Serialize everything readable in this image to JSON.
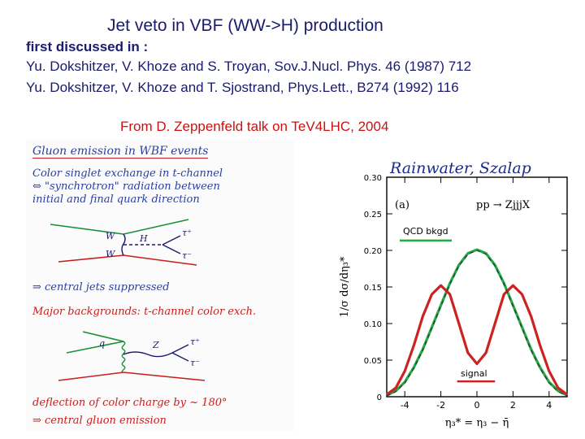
{
  "title": "Jet veto in VBF (WW->H) production",
  "refs": {
    "intro": "first discussed in :",
    "ref1": "Yu. Dokshitzer, V. Khoze and S. Troyan, Sov.J.Nucl. Phys. 46 (1987) 712",
    "ref2": "Yu. Dokshitzer, V. Khoze and T. Sjostrand, Phys.Lett., B274 (1992) 116"
  },
  "credit": "From D. Zeppenfeld talk on TeV4LHC, 2004",
  "notes": {
    "heading": "Gluon emission in WBF events",
    "line1": "Color singlet exchange in t-channel",
    "line2": "⇔ \"synchrotron\" radiation between",
    "line3": "initial and final quark direction",
    "line4": "⇒ central jets suppressed",
    "line5": "Major backgrounds: t-channel color exch.",
    "line6": "deflection of color charge by ~ 180°",
    "line7": "⇒ central gluon emission",
    "diagram1": {
      "w1": "W",
      "w2": "W",
      "h": "H",
      "tau_plus": "τ⁺",
      "tau_minus": "τ⁻"
    },
    "diagram2": {
      "q": "q",
      "z": "Z",
      "tau_plus": "τ⁺",
      "tau_minus": "τ⁻"
    }
  },
  "plot_header": "Rainwater, Szalap",
  "colors": {
    "title": "#1a1a6e",
    "credit": "#cc1111",
    "signal": "#cc2222",
    "qcd": "#22aa44",
    "fit": "#333333"
  },
  "chart_data": {
    "type": "line",
    "panel_label": "(a)",
    "process": "pp  →  ZjjjX",
    "ylabel": "1/σ  dσ/dη₃*",
    "xlabel": "η₃* = η₃ − η̄",
    "xlim": [
      -5,
      5
    ],
    "ylim": [
      0,
      0.3
    ],
    "xticks": [
      -4,
      -2,
      0,
      2,
      4
    ],
    "xtick_labels": [
      "-4",
      "-2",
      "0",
      "2",
      "4"
    ],
    "yticks": [
      0,
      0.05,
      0.1,
      0.15,
      0.2,
      0.25,
      0.3
    ],
    "ytick_labels": [
      "0",
      "0.05",
      "0.10",
      "0.15",
      "0.20",
      "0.25",
      "0.30"
    ],
    "series": [
      {
        "name": "QCD bkgd",
        "x": [
          -5,
          -4.5,
          -4,
          -3.5,
          -3,
          -2.5,
          -2,
          -1.5,
          -1,
          -0.5,
          0,
          0.5,
          1,
          1.5,
          2,
          2.5,
          3,
          3.5,
          4,
          4.5,
          5
        ],
        "y": [
          0.002,
          0.008,
          0.02,
          0.04,
          0.065,
          0.095,
          0.125,
          0.155,
          0.18,
          0.196,
          0.201,
          0.196,
          0.18,
          0.155,
          0.125,
          0.095,
          0.065,
          0.04,
          0.02,
          0.008,
          0.002
        ]
      },
      {
        "name": "signal",
        "x": [
          -5,
          -4.5,
          -4,
          -3.5,
          -3,
          -2.5,
          -2,
          -1.5,
          -1,
          -0.5,
          0,
          0.5,
          1,
          1.5,
          2,
          2.5,
          3,
          3.5,
          4,
          4.5,
          5
        ],
        "y": [
          0.003,
          0.012,
          0.035,
          0.07,
          0.11,
          0.14,
          0.152,
          0.14,
          0.1,
          0.06,
          0.045,
          0.06,
          0.1,
          0.14,
          0.152,
          0.14,
          0.11,
          0.07,
          0.035,
          0.012,
          0.003
        ]
      },
      {
        "x": [
          -5,
          -4.5,
          -4,
          -3.5,
          -3,
          -2.5,
          -2,
          -1.5,
          -1,
          -0.5,
          0,
          0.5,
          1,
          1.5,
          2,
          2.5,
          3,
          3.5,
          4,
          4.5,
          5
        ],
        "y": [
          0.001,
          0.007,
          0.019,
          0.039,
          0.064,
          0.094,
          0.124,
          0.154,
          0.179,
          0.195,
          0.2,
          0.195,
          0.179,
          0.154,
          0.124,
          0.094,
          0.064,
          0.039,
          0.019,
          0.007,
          0.001
        ]
      }
    ]
  }
}
